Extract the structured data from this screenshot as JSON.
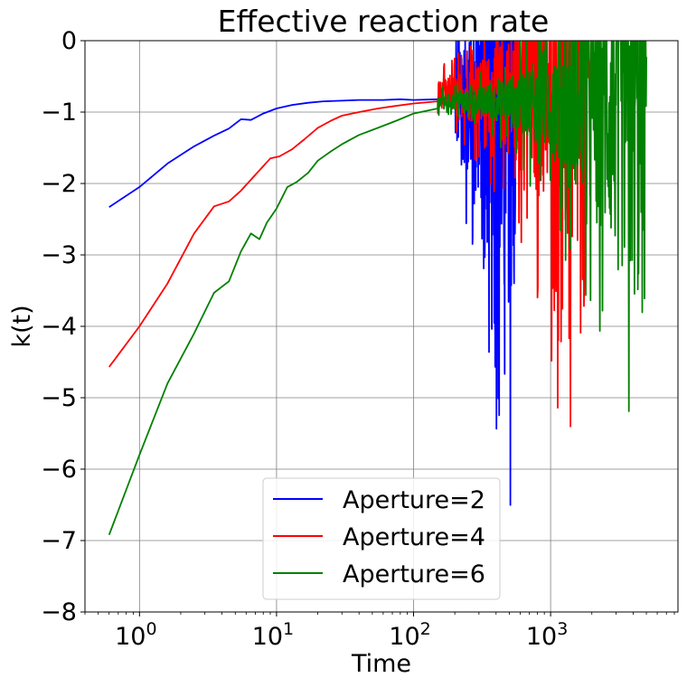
{
  "chart_data": {
    "type": "line",
    "title": "Effective reaction rate",
    "xlabel": "Time",
    "ylabel": "k(t)",
    "xscale": "log",
    "xlim": [
      0.4,
      8500
    ],
    "ylim": [
      -8,
      0
    ],
    "grid": true,
    "legend_position": "lower-center",
    "x_tick_labels": [
      {
        "value": 1,
        "base": "10",
        "exp": "0"
      },
      {
        "value": 10,
        "base": "10",
        "exp": "1"
      },
      {
        "value": 100,
        "base": "10",
        "exp": "2"
      },
      {
        "value": 1000,
        "base": "10",
        "exp": "3"
      }
    ],
    "y_ticks": [
      0,
      -1,
      -2,
      -3,
      -4,
      -5,
      -6,
      -7,
      -8
    ],
    "y_tick_labels": [
      "0",
      "−1",
      "−2",
      "−3",
      "−4",
      "−5",
      "−6",
      "−7",
      "−8"
    ],
    "series": [
      {
        "name": "Aperture=2",
        "color": "#0000ff",
        "smooth": [
          [
            0.6,
            -2.33
          ],
          [
            1.0,
            -2.05
          ],
          [
            1.6,
            -1.72
          ],
          [
            2.5,
            -1.48
          ],
          [
            3.5,
            -1.33
          ],
          [
            4.5,
            -1.23
          ],
          [
            5.5,
            -1.1
          ],
          [
            6.5,
            -1.11
          ],
          [
            8,
            -1.02
          ],
          [
            10,
            -0.95
          ],
          [
            13,
            -0.9
          ],
          [
            17,
            -0.87
          ],
          [
            22,
            -0.85
          ],
          [
            30,
            -0.84
          ],
          [
            40,
            -0.83
          ],
          [
            60,
            -0.83
          ],
          [
            80,
            -0.82
          ],
          [
            100,
            -0.83
          ],
          [
            150,
            -0.82
          ],
          [
            200,
            -0.8
          ]
        ],
        "noisy": {
          "x_start": 20,
          "x_end": 560,
          "center": -0.85,
          "amp_start": 0.04,
          "amp_end": 7.5
        }
      },
      {
        "name": "Aperture=4",
        "color": "#ff0000",
        "smooth": [
          [
            0.6,
            -4.57
          ],
          [
            1.0,
            -4.0
          ],
          [
            1.6,
            -3.4
          ],
          [
            2.5,
            -2.7
          ],
          [
            3.5,
            -2.32
          ],
          [
            4.5,
            -2.25
          ],
          [
            5.5,
            -2.1
          ],
          [
            7,
            -1.88
          ],
          [
            9,
            -1.65
          ],
          [
            10.5,
            -1.62
          ],
          [
            13,
            -1.52
          ],
          [
            16,
            -1.38
          ],
          [
            20,
            -1.22
          ],
          [
            25,
            -1.12
          ],
          [
            30,
            -1.05
          ],
          [
            40,
            -1.0
          ],
          [
            55,
            -0.95
          ],
          [
            70,
            -0.92
          ],
          [
            100,
            -0.88
          ],
          [
            150,
            -0.85
          ]
        ],
        "noisy": {
          "x_start": 12,
          "x_end": 1950,
          "center": -0.75,
          "amp_start": 0.08,
          "amp_end": 7.5
        }
      },
      {
        "name": "Aperture=6",
        "color": "#008000",
        "smooth": [
          [
            0.6,
            -6.92
          ],
          [
            1.0,
            -5.8
          ],
          [
            1.6,
            -4.8
          ],
          [
            2.5,
            -4.1
          ],
          [
            3.5,
            -3.53
          ],
          [
            4.5,
            -3.37
          ],
          [
            5.5,
            -2.95
          ],
          [
            6.5,
            -2.7
          ],
          [
            7.5,
            -2.78
          ],
          [
            8.5,
            -2.55
          ],
          [
            10,
            -2.35
          ],
          [
            12,
            -2.05
          ],
          [
            14,
            -1.98
          ],
          [
            17,
            -1.85
          ],
          [
            20,
            -1.68
          ],
          [
            25,
            -1.55
          ],
          [
            30,
            -1.45
          ],
          [
            40,
            -1.32
          ],
          [
            55,
            -1.22
          ],
          [
            75,
            -1.12
          ],
          [
            100,
            -1.02
          ],
          [
            150,
            -0.95
          ]
        ],
        "noisy": {
          "x_start": 18,
          "x_end": 5000,
          "center": -0.85,
          "amp_start": 0.1,
          "amp_end": 7.5
        }
      }
    ]
  }
}
